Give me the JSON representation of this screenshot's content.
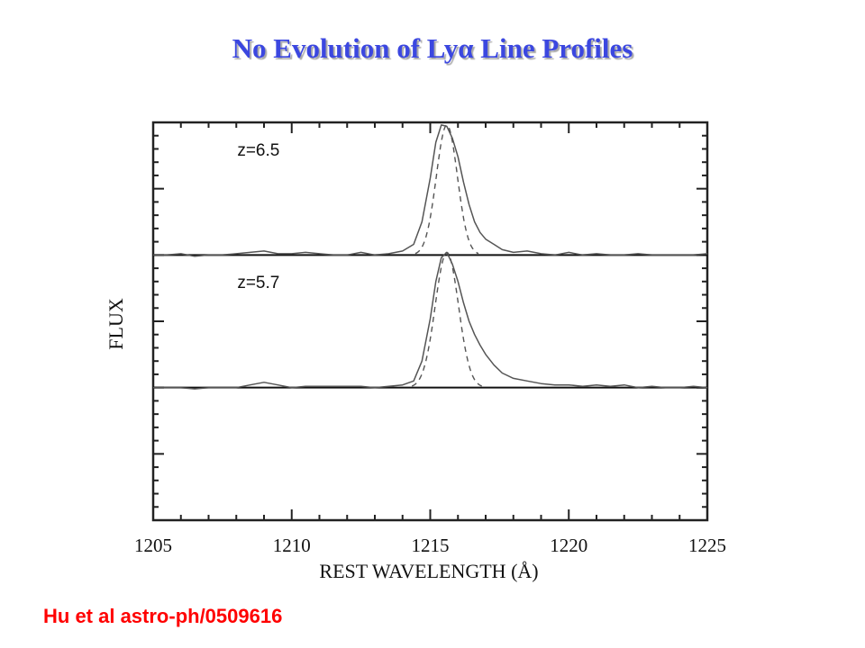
{
  "slide": {
    "title": "No Evolution of Lyα Line Profiles",
    "citation": "Hu et al astro-ph/0509616",
    "title_color": "#3b47e0",
    "citation_color": "#ff0000"
  },
  "chart_data": {
    "type": "line",
    "title": "",
    "xlabel": "REST WAVELENGTH (Å)",
    "ylabel": "FLUX",
    "xlim": [
      1205,
      1225
    ],
    "ylim": [
      0,
      3
    ],
    "xticks": [
      1205,
      1210,
      1215,
      1220,
      1225
    ],
    "grid": false,
    "series": [
      {
        "panel_label": "z=6.5",
        "baseline": 2,
        "observed": {
          "x": [
            1205.0,
            1205.5,
            1206.0,
            1206.5,
            1207.0,
            1207.5,
            1208.0,
            1208.5,
            1209.0,
            1209.5,
            1210.0,
            1210.5,
            1211.0,
            1211.5,
            1212.0,
            1212.5,
            1213.0,
            1213.5,
            1214.0,
            1214.4,
            1214.7,
            1215.0,
            1215.2,
            1215.4,
            1215.6,
            1215.8,
            1216.0,
            1216.2,
            1216.4,
            1216.6,
            1216.8,
            1217.0,
            1217.3,
            1217.6,
            1218.0,
            1218.5,
            1219.0,
            1219.5,
            1220.0,
            1220.5,
            1221.0,
            1221.5,
            1222.0,
            1222.5,
            1223.0,
            1223.5,
            1224.0,
            1224.5,
            1225.0
          ],
          "y": [
            2.0,
            2.0,
            2.01,
            1.99,
            2.0,
            2.0,
            2.01,
            2.02,
            2.03,
            2.01,
            2.01,
            2.02,
            2.01,
            2.0,
            2.0,
            2.02,
            2.0,
            2.01,
            2.03,
            2.08,
            2.25,
            2.58,
            2.85,
            2.98,
            2.97,
            2.88,
            2.74,
            2.55,
            2.38,
            2.25,
            2.17,
            2.12,
            2.08,
            2.04,
            2.02,
            2.03,
            2.01,
            2.0,
            2.02,
            2.0,
            2.01,
            2.0,
            2.0,
            2.01,
            2.0,
            2.0,
            2.0,
            2.0,
            2.01
          ]
        },
        "gaussian_fit": {
          "center": 1215.6,
          "sigma": 0.38,
          "amplitude": 0.98
        }
      },
      {
        "panel_label": "z=5.7",
        "baseline": 1,
        "observed": {
          "x": [
            1205.0,
            1205.5,
            1206.0,
            1206.5,
            1207.0,
            1207.5,
            1208.0,
            1208.5,
            1209.0,
            1209.5,
            1210.0,
            1210.5,
            1211.0,
            1211.5,
            1212.0,
            1212.5,
            1213.0,
            1213.5,
            1214.0,
            1214.4,
            1214.7,
            1215.0,
            1215.2,
            1215.4,
            1215.6,
            1215.8,
            1216.0,
            1216.2,
            1216.4,
            1216.6,
            1216.8,
            1217.0,
            1217.3,
            1217.6,
            1218.0,
            1218.5,
            1219.0,
            1219.5,
            1220.0,
            1220.5,
            1221.0,
            1221.5,
            1222.0,
            1222.5,
            1223.0,
            1223.5,
            1224.0,
            1224.5,
            1225.0
          ],
          "y": [
            1.0,
            1.0,
            1.0,
            0.99,
            1.0,
            1.0,
            1.0,
            1.02,
            1.04,
            1.02,
            1.0,
            1.01,
            1.01,
            1.01,
            1.01,
            1.01,
            1.0,
            1.01,
            1.02,
            1.05,
            1.2,
            1.52,
            1.8,
            1.98,
            2.02,
            1.93,
            1.8,
            1.64,
            1.5,
            1.4,
            1.32,
            1.25,
            1.17,
            1.11,
            1.07,
            1.05,
            1.03,
            1.02,
            1.02,
            1.01,
            1.02,
            1.01,
            1.02,
            1.0,
            1.01,
            1.0,
            1.0,
            1.01,
            1.0
          ]
        },
        "gaussian_fit": {
          "center": 1215.6,
          "sigma": 0.42,
          "amplitude": 1.02
        }
      }
    ]
  }
}
